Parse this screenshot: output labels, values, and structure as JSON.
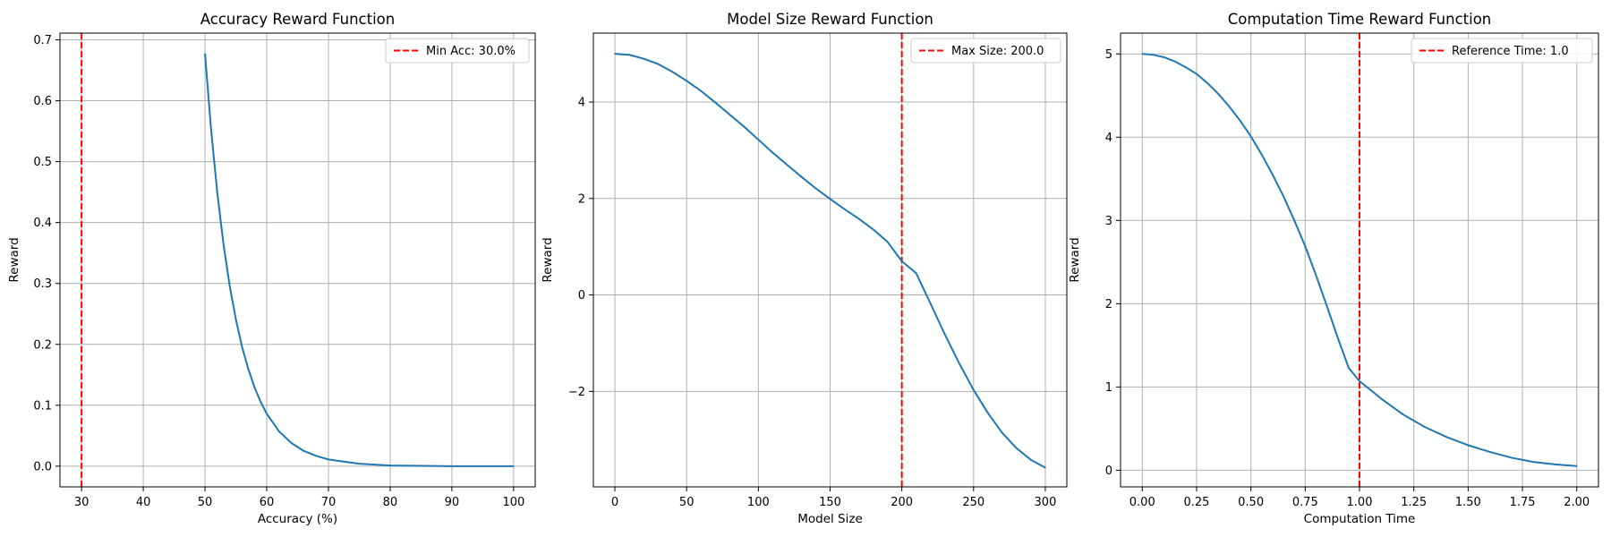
{
  "chart_data": [
    {
      "type": "line",
      "title": "Accuracy Reward Function",
      "xlabel": "Accuracy (%)",
      "ylabel": "Reward",
      "xlim": [
        26.5,
        103.5
      ],
      "ylim": [
        -0.034,
        0.711
      ],
      "xticks": [
        30,
        40,
        50,
        60,
        70,
        80,
        90,
        100
      ],
      "xtick_labels": [
        "30",
        "40",
        "50",
        "60",
        "70",
        "80",
        "90",
        "100"
      ],
      "yticks": [
        0.0,
        0.1,
        0.2,
        0.3,
        0.4,
        0.5,
        0.6,
        0.7
      ],
      "ytick_labels": [
        "0.0",
        "0.1",
        "0.2",
        "0.3",
        "0.4",
        "0.5",
        "0.6",
        "0.7"
      ],
      "grid": true,
      "legend_position": "top-right",
      "series": [
        {
          "color": "#1f77b4",
          "x": [
            50,
            51,
            52,
            53,
            54,
            55,
            56,
            57,
            58,
            59,
            60,
            62,
            64,
            66,
            68,
            70,
            75,
            80,
            90,
            100
          ],
          "y": [
            0.677,
            0.551,
            0.448,
            0.364,
            0.296,
            0.241,
            0.196,
            0.16,
            0.13,
            0.106,
            0.086,
            0.057,
            0.038,
            0.025,
            0.017,
            0.011,
            0.004,
            0.001,
            0.0,
            0.0
          ]
        }
      ],
      "reference_line": {
        "x": 30,
        "label": "Min Acc: 30.0%",
        "color": "#ff0000",
        "style": "dashed"
      }
    },
    {
      "type": "line",
      "title": "Model Size Reward Function",
      "xlabel": "Model Size",
      "ylabel": "Reward",
      "xlim": [
        -15,
        315
      ],
      "ylim": [
        -3.98,
        5.43
      ],
      "xticks": [
        0,
        50,
        100,
        150,
        200,
        250,
        300
      ],
      "xtick_labels": [
        "0",
        "50",
        "100",
        "150",
        "200",
        "250",
        "300"
      ],
      "yticks": [
        -2,
        0,
        2,
        4
      ],
      "ytick_labels": [
        "−2",
        "0",
        "2",
        "4"
      ],
      "grid": true,
      "legend_position": "top-right",
      "series": [
        {
          "color": "#1f77b4",
          "x": [
            0,
            10,
            20,
            30,
            40,
            50,
            60,
            70,
            80,
            90,
            100,
            110,
            120,
            130,
            140,
            150,
            160,
            170,
            180,
            190,
            200,
            210,
            220,
            230,
            240,
            250,
            260,
            270,
            280,
            290,
            300
          ],
          "y": [
            5.0,
            4.98,
            4.9,
            4.79,
            4.63,
            4.44,
            4.23,
            3.99,
            3.74,
            3.49,
            3.22,
            2.95,
            2.7,
            2.45,
            2.21,
            1.99,
            1.78,
            1.58,
            1.36,
            1.1,
            0.7,
            0.45,
            -0.18,
            -0.82,
            -1.42,
            -1.97,
            -2.45,
            -2.86,
            -3.18,
            -3.42,
            -3.58
          ]
        }
      ],
      "reference_line": {
        "x": 200,
        "label": "Max Size: 200.0",
        "color": "#ff0000",
        "style": "dashed"
      }
    },
    {
      "type": "line",
      "title": "Computation Time Reward Function",
      "xlabel": "Computation Time",
      "ylabel": "Reward",
      "xlim": [
        -0.1,
        2.1
      ],
      "ylim": [
        -0.2,
        5.25
      ],
      "xticks": [
        0.0,
        0.25,
        0.5,
        0.75,
        1.0,
        1.25,
        1.5,
        1.75,
        2.0
      ],
      "xtick_labels": [
        "0.00",
        "0.25",
        "0.50",
        "0.75",
        "1.00",
        "1.25",
        "1.50",
        "1.75",
        "2.00"
      ],
      "yticks": [
        0,
        1,
        2,
        3,
        4,
        5
      ],
      "ytick_labels": [
        "0",
        "1",
        "2",
        "3",
        "4",
        "5"
      ],
      "grid": true,
      "legend_position": "top-right",
      "series": [
        {
          "color": "#1f77b4",
          "x": [
            0.0,
            0.05,
            0.1,
            0.15,
            0.2,
            0.25,
            0.3,
            0.35,
            0.4,
            0.45,
            0.5,
            0.55,
            0.6,
            0.65,
            0.7,
            0.75,
            0.8,
            0.85,
            0.9,
            0.95,
            1.0,
            1.1,
            1.2,
            1.3,
            1.4,
            1.5,
            1.6,
            1.7,
            1.8,
            1.9,
            2.0
          ],
          "y": [
            5.0,
            4.99,
            4.96,
            4.91,
            4.84,
            4.76,
            4.65,
            4.52,
            4.37,
            4.2,
            4.01,
            3.79,
            3.55,
            3.29,
            3.0,
            2.69,
            2.34,
            1.97,
            1.59,
            1.23,
            1.07,
            0.86,
            0.67,
            0.52,
            0.4,
            0.3,
            0.22,
            0.15,
            0.1,
            0.07,
            0.05
          ]
        }
      ],
      "reference_line": {
        "x": 1.0,
        "label": "Reference Time: 1.0",
        "color": "#ff0000",
        "style": "dashed"
      }
    }
  ]
}
